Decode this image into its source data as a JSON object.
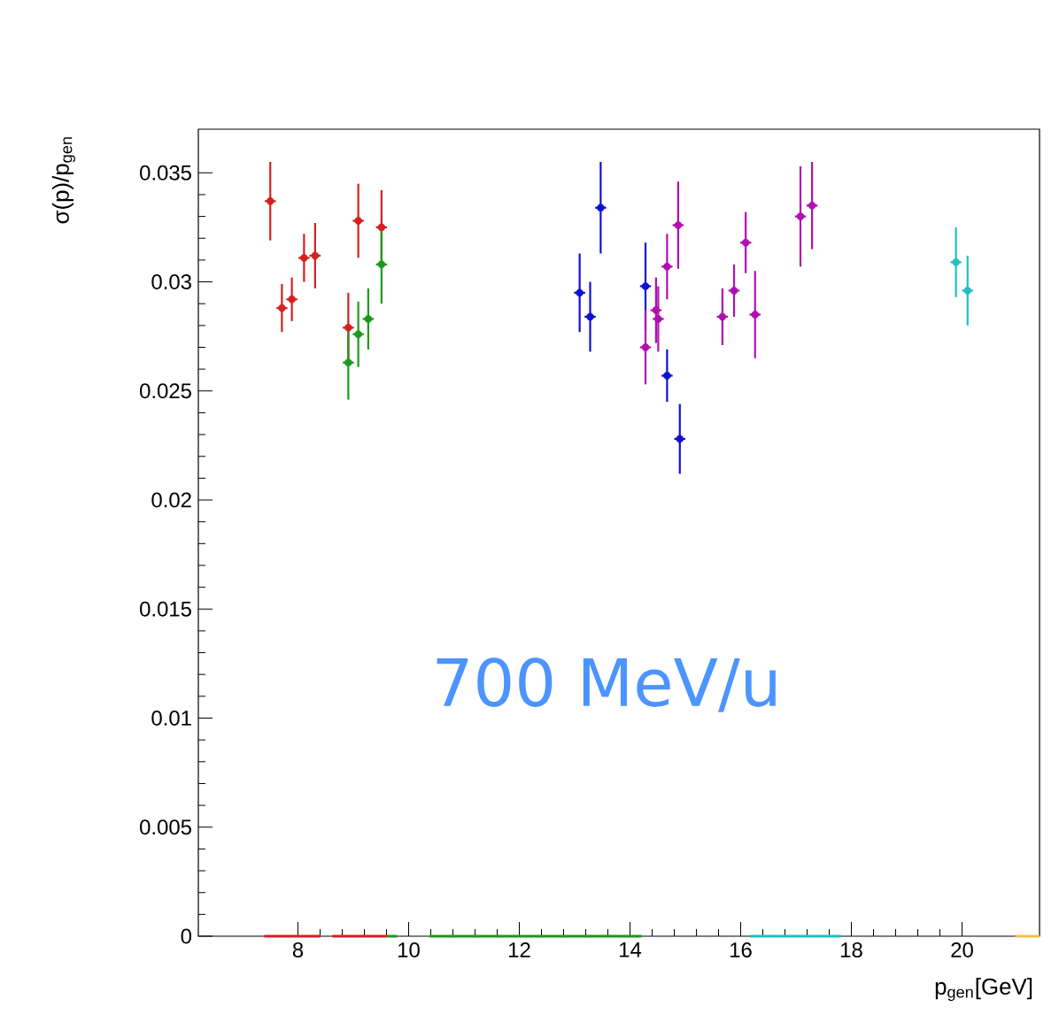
{
  "chart_data": {
    "type": "scatter",
    "xlabel": "p$_{gen}$[GeV]",
    "ylabel": "σ(p)/p$_{gen}$",
    "xlim": [
      6.2,
      21.4
    ],
    "ylim": [
      0,
      0.037
    ],
    "xticks": [
      8,
      10,
      12,
      14,
      16,
      18,
      20
    ],
    "yticks": [
      0,
      0.005,
      0.01,
      0.015,
      0.02,
      0.025,
      0.03,
      0.035
    ],
    "annotations": [
      "700 MeV/u"
    ],
    "series": [
      {
        "color": "#d42020",
        "x": [
          7.5,
          7.71,
          7.89,
          8.11,
          8.31,
          8.91,
          9.09,
          9.51
        ],
        "values": [
          0.0337,
          0.0288,
          0.0292,
          0.0311,
          0.0312,
          0.0279,
          0.0328,
          0.0325
        ],
        "errors": [
          0.0018,
          0.0011,
          0.001,
          0.0011,
          0.0015,
          0.0016,
          0.0017,
          0.0017
        ],
        "xerrors": [
          0.1,
          0.1,
          0.1,
          0.1,
          0.1,
          0.1,
          0.1,
          0.1
        ]
      },
      {
        "color": "#1a9a1a",
        "x": [
          8.91,
          9.09,
          9.27,
          9.51
        ],
        "values": [
          0.0263,
          0.0276,
          0.0283,
          0.0308
        ],
        "errors": [
          0.0017,
          0.0015,
          0.0014,
          0.0018
        ],
        "xerrors": [
          0.1,
          0.1,
          0.1,
          0.1
        ]
      },
      {
        "color": "#1010d0",
        "x": [
          13.09,
          13.28,
          13.47,
          14.28,
          14.67,
          14.9
        ],
        "values": [
          0.0295,
          0.0284,
          0.0334,
          0.0298,
          0.0257,
          0.0228
        ],
        "errors": [
          0.0018,
          0.0016,
          0.0021,
          0.002,
          0.0012,
          0.0016
        ],
        "xerrors": [
          0.1,
          0.1,
          0.1,
          0.1,
          0.1,
          0.1
        ]
      },
      {
        "color": "#b010b0",
        "x": [
          14.28,
          14.47,
          14.51,
          14.67,
          14.87,
          15.67,
          15.88,
          16.09,
          16.26,
          17.08,
          17.29
        ],
        "values": [
          0.027,
          0.0287,
          0.0283,
          0.0307,
          0.0326,
          0.0284,
          0.0296,
          0.0318,
          0.0285,
          0.033,
          0.0335
        ],
        "errors": [
          0.0017,
          0.0015,
          0.0015,
          0.0015,
          0.002,
          0.0013,
          0.0012,
          0.0014,
          0.002,
          0.0023,
          0.002
        ],
        "xerrors": [
          0.1,
          0.1,
          0.1,
          0.1,
          0.1,
          0.1,
          0.1,
          0.1,
          0.1,
          0.1,
          0.1
        ]
      },
      {
        "color": "#20c0c0",
        "x": [
          19.89,
          20.1
        ],
        "values": [
          0.0309,
          0.0296
        ],
        "errors": [
          0.0016,
          0.0016
        ],
        "xerrors": [
          0.1,
          0.1
        ]
      },
      {
        "type": "line",
        "color": "#d42020",
        "x": [
          7.39,
          8.41
        ],
        "values": [
          0,
          0
        ]
      },
      {
        "type": "line",
        "color": "#d42020",
        "x": [
          8.62,
          9.61
        ],
        "values": [
          0,
          0
        ]
      },
      {
        "type": "line",
        "color": "#1a9a1a",
        "x": [
          9.61,
          9.79
        ],
        "values": [
          0,
          0
        ]
      },
      {
        "type": "line",
        "color": "#1a9a1a",
        "x": [
          10.38,
          14.21
        ],
        "values": [
          0,
          0
        ]
      },
      {
        "type": "line",
        "color": "#20c0c0",
        "x": [
          16.17,
          17.81
        ],
        "values": [
          0,
          0
        ]
      },
      {
        "type": "line",
        "color": "#f0c040",
        "x": [
          20.96,
          21.4
        ],
        "values": [
          0,
          0
        ]
      }
    ]
  }
}
